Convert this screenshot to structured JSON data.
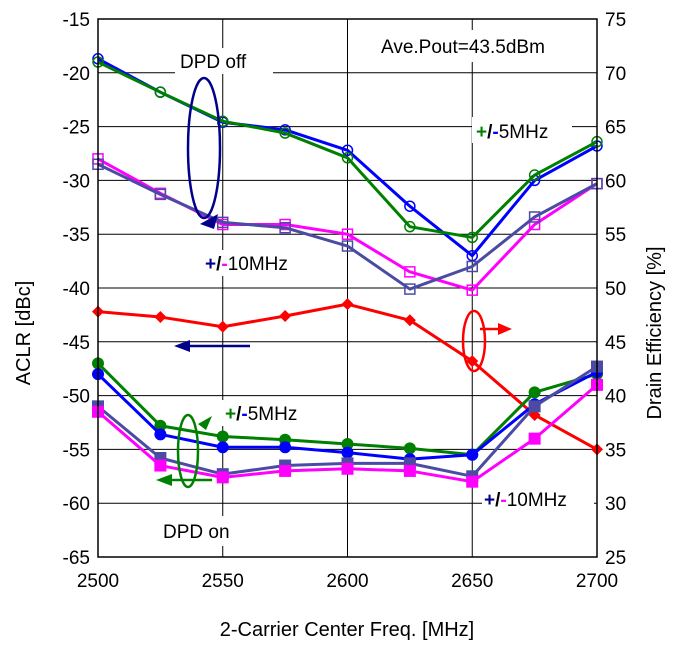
{
  "chart_data": {
    "type": "line",
    "xlabel": "2-Carrier Center Freq. [MHz]",
    "ylabel_left": "ACLR [dBc]",
    "ylabel_right": "Drain Efficiency [%]",
    "x": [
      2500,
      2525,
      2550,
      2575,
      2600,
      2625,
      2650,
      2675,
      2700
    ],
    "xlim": [
      2500,
      2700
    ],
    "xticks": [
      "2500",
      "2550",
      "2600",
      "2650",
      "2700"
    ],
    "ylim_left": [
      -65,
      -15
    ],
    "yticks_left": [
      "-15",
      "-20",
      "-25",
      "-30",
      "-35",
      "-40",
      "-45",
      "-50",
      "-55",
      "-60",
      "-65"
    ],
    "ylim_right": [
      25,
      75
    ],
    "yticks_right": [
      "75",
      "70",
      "65",
      "60",
      "55",
      "50",
      "45",
      "40",
      "35",
      "30",
      "25"
    ],
    "grid": true,
    "annotations": {
      "pout": "Ave.Pout=43.5dBm",
      "dpd_off": "DPD off",
      "dpd_on": "DPD on",
      "pm5_top": {
        "plus": "+",
        "slash": "/",
        "minus": "-",
        "rest": "5MHz"
      },
      "pm10_top": {
        "plus": "+",
        "slash": "/",
        "minus": "-",
        "rest": "10MHz"
      },
      "pm5_bottom": {
        "plus": "+",
        "slash": "/",
        "minus": "-",
        "rest": "5MHz"
      },
      "pm10_bottom": {
        "plus": "+",
        "slash": "/",
        "minus": "-",
        "rest": "10MHz"
      }
    },
    "series": [
      {
        "color": "#0000ff",
        "marker": "open-circle",
        "axis": "left",
        "values": [
          -18.7,
          -21.8,
          -24.6,
          -25.3,
          -27.2,
          -32.4,
          -37.0,
          -30.0,
          -26.8
        ]
      },
      {
        "color": "#008000",
        "marker": "open-circle",
        "axis": "left",
        "values": [
          -19.0,
          -21.8,
          -24.5,
          -25.6,
          -27.9,
          -34.3,
          -35.3,
          -29.5,
          -26.4
        ]
      },
      {
        "color": "#ff00ff",
        "marker": "open-square",
        "axis": "left",
        "values": [
          -28.0,
          -31.2,
          -34.1,
          -34.1,
          -35.0,
          -38.5,
          -40.2,
          -34.1,
          -30.3
        ]
      },
      {
        "color": "#4b4ba3",
        "marker": "open-square",
        "axis": "left",
        "values": [
          -28.5,
          -31.3,
          -33.9,
          -34.4,
          -36.1,
          -40.1,
          -38.0,
          -33.4,
          -30.3
        ]
      },
      {
        "color": "#ff0000",
        "marker": "diamond",
        "axis": "right",
        "values": [
          47.8,
          47.3,
          46.4,
          47.4,
          48.5,
          47.0,
          43.2,
          38.2,
          35.0
        ]
      },
      {
        "color": "#008000",
        "marker": "filled-circle",
        "axis": "left",
        "values": [
          -47.0,
          -52.8,
          -53.8,
          -54.1,
          -54.5,
          -54.9,
          -55.5,
          -49.7,
          -48.0
        ]
      },
      {
        "color": "#0000ff",
        "marker": "filled-circle",
        "axis": "left",
        "values": [
          -48.0,
          -53.6,
          -54.8,
          -54.8,
          -55.3,
          -55.9,
          -55.5,
          -50.8,
          -47.8
        ]
      },
      {
        "color": "#4b4ba3",
        "marker": "filled-square",
        "axis": "left",
        "values": [
          -51.0,
          -55.8,
          -57.3,
          -56.5,
          -56.3,
          -56.3,
          -57.5,
          -51.0,
          -47.3
        ]
      },
      {
        "color": "#ff00ff",
        "marker": "filled-square",
        "axis": "left",
        "values": [
          -51.5,
          -56.5,
          -57.6,
          -57.0,
          -56.8,
          -57.0,
          -58.0,
          -54.0,
          -49.0
        ]
      }
    ]
  }
}
